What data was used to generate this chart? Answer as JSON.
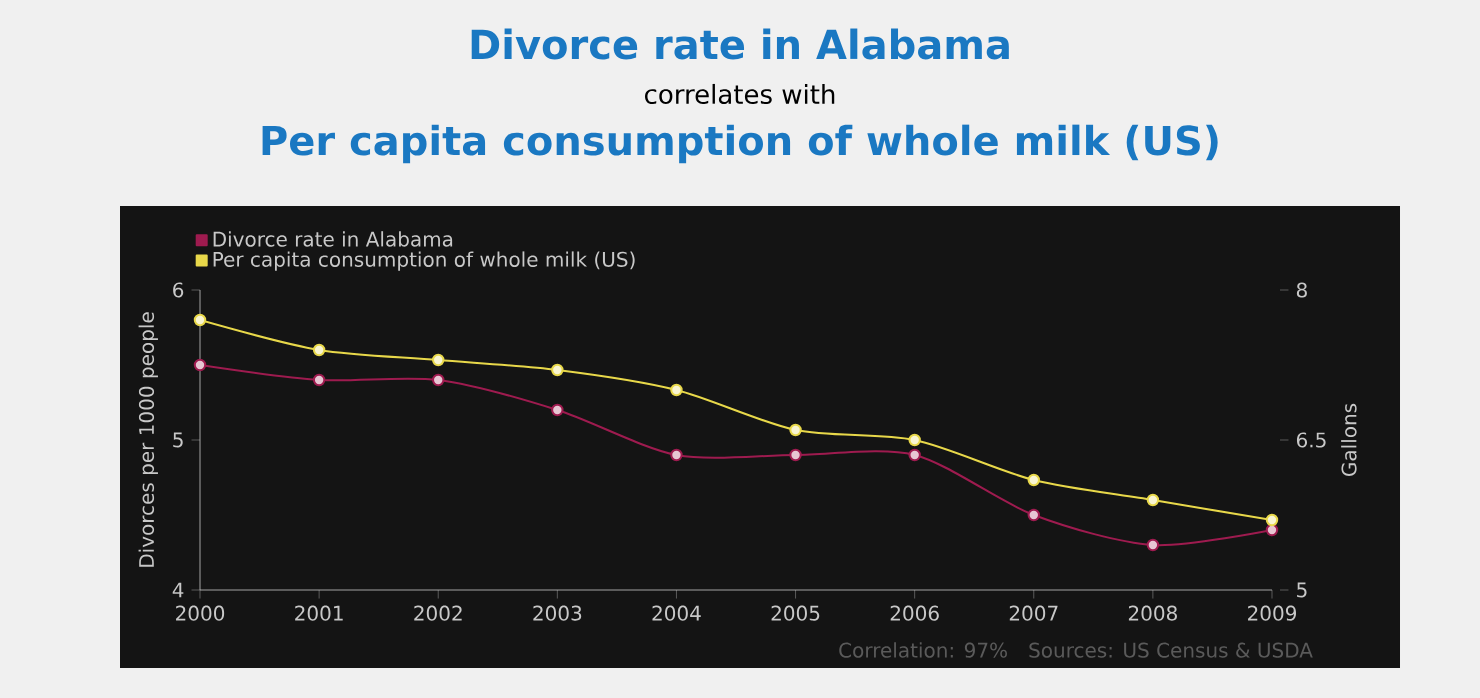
{
  "chart_data": {
    "type": "line",
    "title": "Divorce rate in Alabama",
    "subtitle": "correlates with",
    "annotations": [
      "Per capita consumption of whole milk (US)",
      "Correlation: 97%",
      "Sources: US Census & USDA"
    ],
    "ylabel": "Divorces per 1000 people",
    "y2label": "Gallons",
    "x": [
      2000,
      2001,
      2002,
      2003,
      2004,
      2005,
      2006,
      2007,
      2008,
      2009
    ],
    "xlim": [
      2000,
      2009
    ],
    "xticks": [
      2000,
      2001,
      2002,
      2003,
      2004,
      2005,
      2006,
      2007,
      2008,
      2009
    ],
    "ylim": [
      4,
      6
    ],
    "yticks": [
      4,
      5,
      6
    ],
    "y2lim": [
      5,
      8
    ],
    "y2ticks": [
      5,
      6.5,
      8
    ],
    "series": [
      {
        "name": "Divorce rate in Alabama",
        "color": "#9e1b4f",
        "values": [
          5.5,
          5.4,
          5.4,
          5.2,
          4.9,
          4.9,
          4.9,
          4.5,
          4.3,
          4.4
        ]
      },
      {
        "name": "Per capita consumption of whole milk (US)",
        "color": "#e8d84a",
        "axis": "y2",
        "values": [
          7.7,
          7.4,
          7.3,
          7.2,
          7.0,
          6.6,
          6.5,
          6.1,
          5.9,
          5.7
        ]
      }
    ],
    "legend": "top left",
    "marker": "circle",
    "line_style": "solid"
  }
}
